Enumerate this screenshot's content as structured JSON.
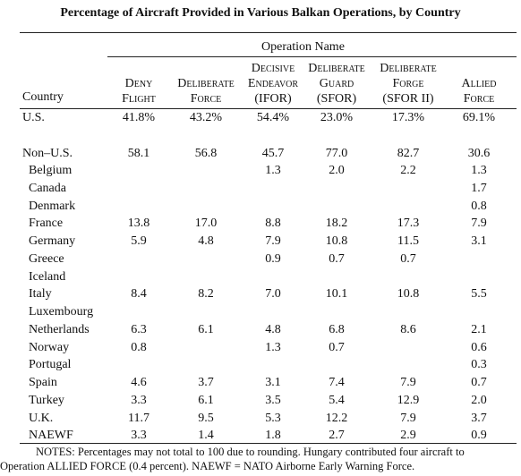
{
  "title": "Percentage of Aircraft Provided in Various Balkan Operations, by Country",
  "table": {
    "group_header": "Operation Name",
    "country_header": "Country",
    "columns": [
      [
        "Deny",
        "Flight"
      ],
      [
        "Deliberate",
        "Force"
      ],
      [
        "Decisive",
        "Endeavor",
        "(IFOR)"
      ],
      [
        "Deliberate",
        "Guard",
        "(SFOR)"
      ],
      [
        "Deliberate",
        "Forge",
        "(SFOR II)"
      ],
      [
        "Allied",
        "Force"
      ]
    ],
    "us_row": {
      "country": "U.S.",
      "values": [
        "41.8%",
        "43.2%",
        "54.4%",
        "23.0%",
        "17.3%",
        "69.1%"
      ]
    },
    "non_us_row": {
      "country": "Non–U.S.",
      "values": [
        "58.1",
        "56.8",
        "45.7",
        "77.0",
        "82.7",
        "30.6"
      ]
    },
    "countries": [
      {
        "country": "Belgium",
        "values": [
          null,
          null,
          "1.3",
          "2.0",
          "2.2",
          "1.3"
        ]
      },
      {
        "country": "Canada",
        "values": [
          null,
          null,
          null,
          null,
          null,
          "1.7"
        ]
      },
      {
        "country": "Denmark",
        "values": [
          null,
          null,
          null,
          null,
          null,
          "0.8"
        ]
      },
      {
        "country": "France",
        "values": [
          "13.8",
          "17.0",
          "8.8",
          "18.2",
          "17.3",
          "7.9"
        ]
      },
      {
        "country": "Germany",
        "values": [
          "5.9",
          "4.8",
          "7.9",
          "10.8",
          "11.5",
          "3.1"
        ]
      },
      {
        "country": "Greece",
        "values": [
          null,
          null,
          "0.9",
          "0.7",
          "0.7",
          null
        ]
      },
      {
        "country": "Iceland",
        "values": [
          null,
          null,
          null,
          null,
          null,
          null
        ]
      },
      {
        "country": "Italy",
        "values": [
          "8.4",
          "8.2",
          "7.0",
          "10.1",
          "10.8",
          "5.5"
        ]
      },
      {
        "country": "Luxembourg",
        "values": [
          null,
          null,
          null,
          null,
          null,
          null
        ]
      },
      {
        "country": "Netherlands",
        "values": [
          "6.3",
          "6.1",
          "4.8",
          "6.8",
          "8.6",
          "2.1"
        ]
      },
      {
        "country": "Norway",
        "values": [
          "0.8",
          null,
          "1.3",
          "0.7",
          null,
          "0.6"
        ]
      },
      {
        "country": "Portugal",
        "values": [
          null,
          null,
          null,
          null,
          null,
          "0.3"
        ]
      },
      {
        "country": "Spain",
        "values": [
          "4.6",
          "3.7",
          "3.1",
          "7.4",
          "7.9",
          "0.7"
        ]
      },
      {
        "country": "Turkey",
        "values": [
          "3.3",
          "6.1",
          "3.5",
          "5.4",
          "12.9",
          "2.0"
        ]
      },
      {
        "country": "U.K.",
        "values": [
          "11.7",
          "9.5",
          "5.3",
          "12.2",
          "7.9",
          "3.7"
        ]
      },
      {
        "country": "NAEWF",
        "values": [
          "3.3",
          "1.4",
          "1.8",
          "2.7",
          "2.9",
          "0.9"
        ]
      }
    ]
  },
  "notes": [
    "NOTES: Percentages may not total to 100 due to rounding. Hungary contributed four aircraft to",
    "Operation ALLIED FORCE (0.4 percent). NAEWF = NATO Airborne Early Warning Force."
  ]
}
